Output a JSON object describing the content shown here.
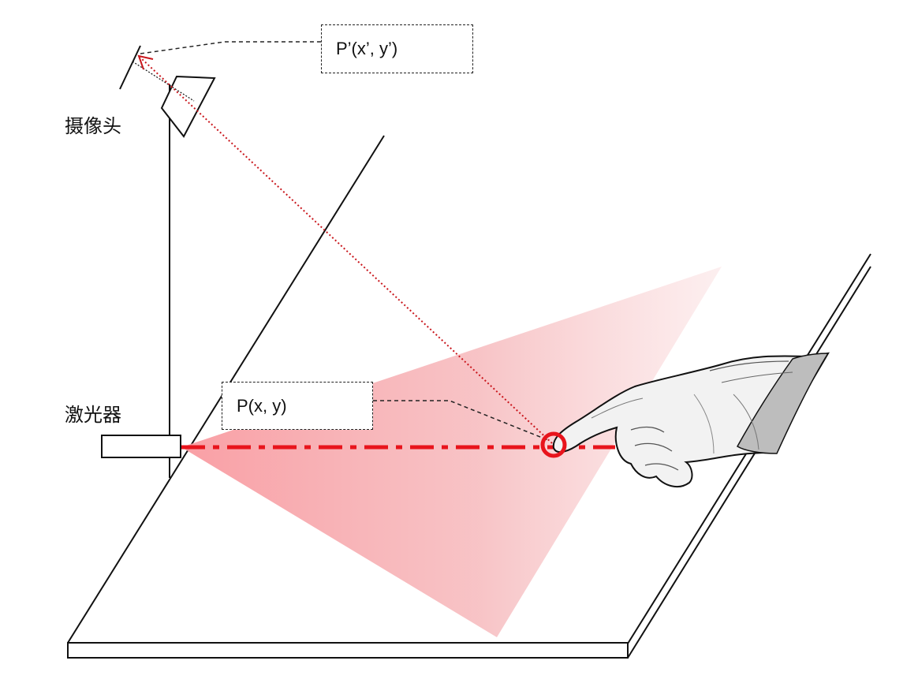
{
  "labels": {
    "camera": "摄像头",
    "laser": "激光器"
  },
  "points": {
    "image_point": "P’(x’, y’)",
    "touch_point": "P(x, y)"
  },
  "colors": {
    "laser_red": "#e8141c",
    "beam_fill": "#f7a6a8",
    "stroke": "#111111"
  },
  "icons": {
    "hand": "pointing-hand-icon",
    "camera": "camera-icon",
    "laser": "laser-emitter-icon"
  }
}
